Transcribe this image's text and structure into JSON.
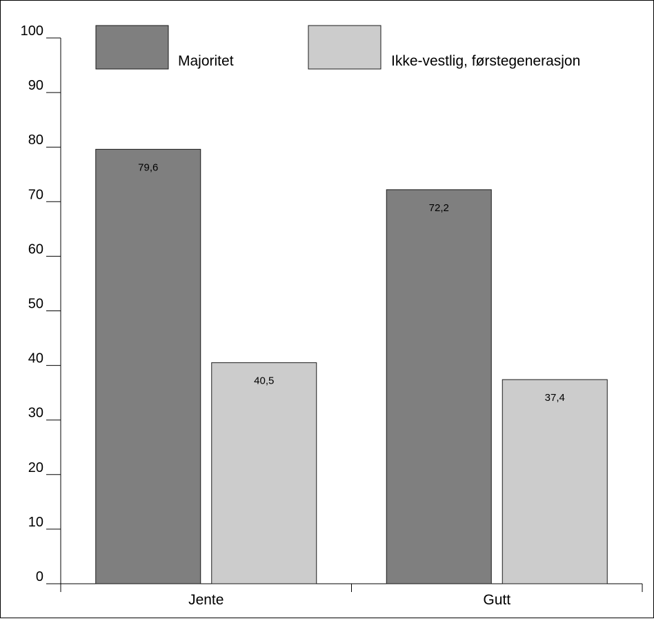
{
  "chart_data": {
    "type": "bar",
    "categories": [
      "Jente",
      "Gutt"
    ],
    "series": [
      {
        "name": "Majoritet",
        "values": [
          79.6,
          72.2
        ],
        "color": "#7f7f7f"
      },
      {
        "name": "Ikke-vestlig, førstegenerasjon",
        "values": [
          40.5,
          37.4
        ],
        "color": "#cccccc"
      }
    ],
    "value_labels": [
      [
        "79,6",
        "72,2"
      ],
      [
        "40,5",
        "37,4"
      ]
    ],
    "yticks": [
      0,
      10,
      20,
      30,
      40,
      50,
      60,
      70,
      80,
      90,
      100
    ],
    "ylim": [
      0,
      100
    ],
    "title": "",
    "xlabel": "",
    "ylabel": "",
    "grid": false,
    "legend_position": "top"
  }
}
